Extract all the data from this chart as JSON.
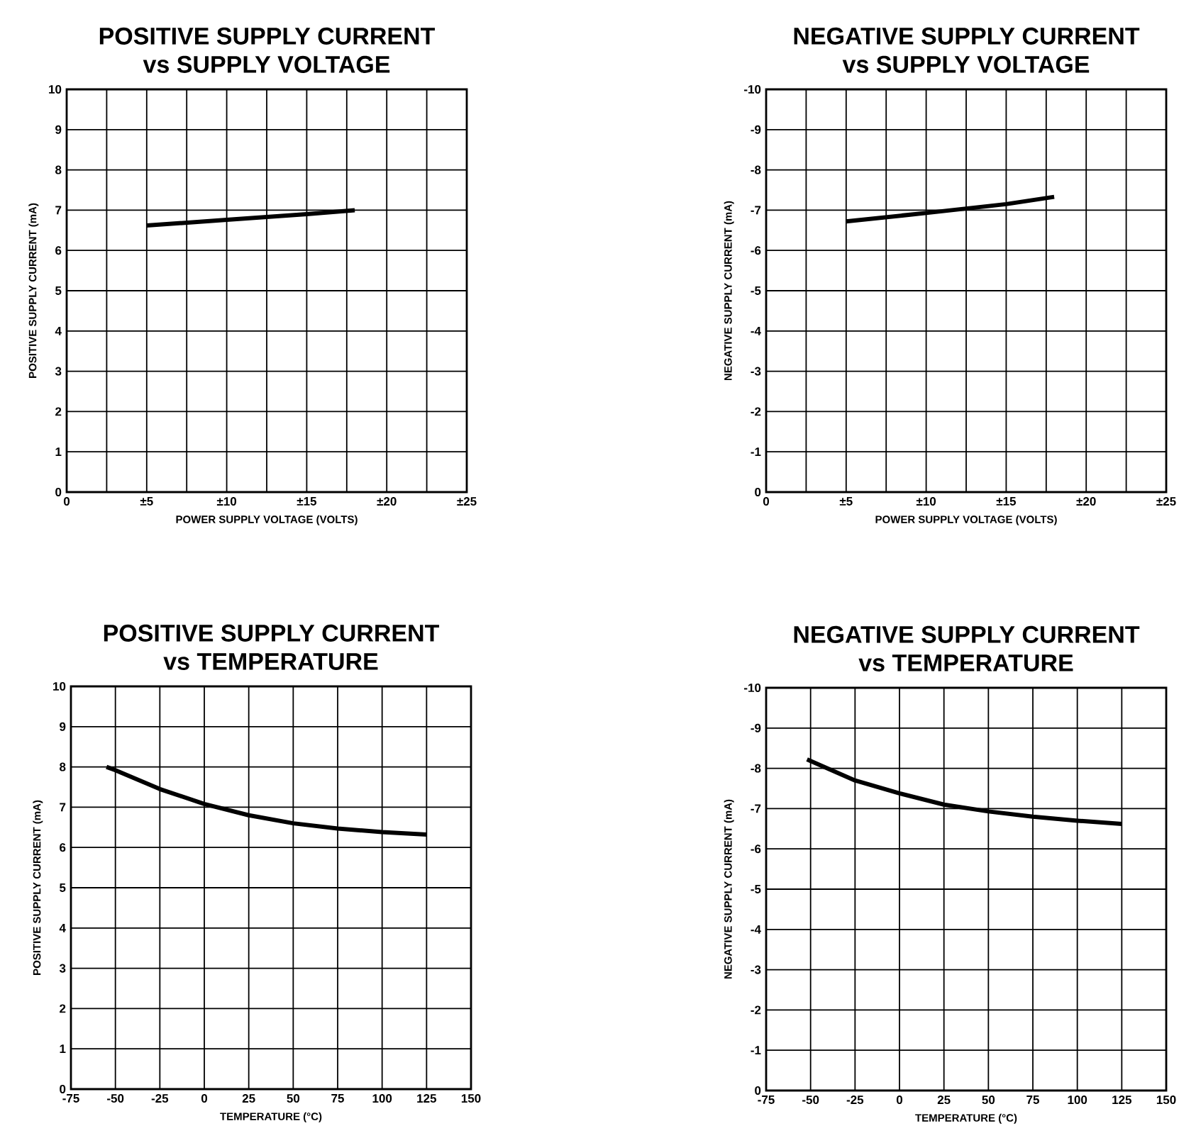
{
  "chart_data": [
    {
      "type": "line",
      "title": "POSITIVE SUPPLY CURRENT vs SUPPLY VOLTAGE",
      "xlabel": "POWER SUPPLY VOLTAGE (VOLTS)",
      "ylabel": "POSITIVE SUPPLY CURRENT (mA)",
      "xlim": [
        0,
        25
      ],
      "ylim": [
        0,
        10
      ],
      "xticks": [
        0,
        {
          "value": 2.5,
          "label": null
        },
        {
          "value": 5,
          "label": "±5"
        },
        {
          "value": 7.5,
          "label": null
        },
        {
          "value": 10,
          "label": "±10"
        },
        {
          "value": 12.5,
          "label": null
        },
        {
          "value": 15,
          "label": "±15"
        },
        {
          "value": 17.5,
          "label": null
        },
        {
          "value": 20,
          "label": "±20"
        },
        {
          "value": 22.5,
          "label": null
        },
        {
          "value": 25,
          "label": "±25"
        }
      ],
      "yticks": [
        0,
        1,
        2,
        3,
        4,
        5,
        6,
        7,
        8,
        9,
        10
      ],
      "grid": true,
      "line_style": "solid",
      "series": [
        {
          "color": "#000000",
          "x": [
            5,
            10,
            15,
            18
          ],
          "values": [
            6.62,
            6.76,
            6.9,
            7.0
          ]
        }
      ]
    },
    {
      "type": "line",
      "title": "NEGATIVE SUPPLY CURRENT vs SUPPLY VOLTAGE",
      "xlabel": "POWER SUPPLY VOLTAGE (VOLTS)",
      "ylabel": "NEGATIVE SUPPLY CURRENT (mA)",
      "xlim": [
        0,
        25
      ],
      "ylim": [
        0,
        -10
      ],
      "xticks": [
        0,
        {
          "value": 2.5,
          "label": null
        },
        {
          "value": 5,
          "label": "±5"
        },
        {
          "value": 7.5,
          "label": null
        },
        {
          "value": 10,
          "label": "±10"
        },
        {
          "value": 12.5,
          "label": null
        },
        {
          "value": 15,
          "label": "±15"
        },
        {
          "value": 17.5,
          "label": null
        },
        {
          "value": 20,
          "label": "±20"
        },
        {
          "value": 22.5,
          "label": null
        },
        {
          "value": 25,
          "label": "±25"
        }
      ],
      "yticks": [
        0,
        -1,
        -2,
        -3,
        -4,
        -5,
        -6,
        -7,
        -8,
        -9,
        -10
      ],
      "grid": true,
      "line_style": "solid",
      "series": [
        {
          "color": "#000000",
          "x": [
            5,
            10,
            15,
            18
          ],
          "values": [
            -6.72,
            -6.93,
            -7.15,
            -7.33
          ]
        }
      ]
    },
    {
      "type": "line",
      "title": "POSITIVE SUPPLY CURRENT vs TEMPERATURE",
      "xlabel": "TEMPERATURE (°C)",
      "ylabel": "POSITIVE SUPPLY CURRENT (mA)",
      "xlim": [
        -75,
        150
      ],
      "ylim": [
        0,
        10
      ],
      "xticks": [
        -75,
        -50,
        -25,
        0,
        25,
        50,
        75,
        100,
        125,
        150
      ],
      "yticks": [
        0,
        1,
        2,
        3,
        4,
        5,
        6,
        7,
        8,
        9,
        10
      ],
      "grid": true,
      "line_style": "solid",
      "series": [
        {
          "color": "#000000",
          "x": [
            -55,
            -50,
            -25,
            0,
            25,
            50,
            75,
            100,
            125
          ],
          "values": [
            8.0,
            7.92,
            7.45,
            7.08,
            6.8,
            6.6,
            6.47,
            6.38,
            6.32
          ]
        }
      ]
    },
    {
      "type": "line",
      "title": "NEGATIVE SUPPLY CURRENT vs TEMPERATURE",
      "xlabel": "TEMPERATURE (°C)",
      "ylabel": "NEGATIVE SUPPLY CURRENT (mA)",
      "xlim": [
        -75,
        150
      ],
      "ylim": [
        0,
        -10
      ],
      "xticks": [
        -75,
        -50,
        -25,
        0,
        25,
        50,
        75,
        100,
        125,
        150
      ],
      "yticks": [
        0,
        -1,
        -2,
        -3,
        -4,
        -5,
        -6,
        -7,
        -8,
        -9,
        -10
      ],
      "grid": true,
      "line_style": "solid",
      "series": [
        {
          "color": "#000000",
          "x": [
            -52,
            -25,
            0,
            25,
            50,
            75,
            100,
            125
          ],
          "values": [
            -8.22,
            -7.7,
            -7.38,
            -7.1,
            -6.93,
            -6.8,
            -6.7,
            -6.62
          ]
        }
      ]
    }
  ]
}
